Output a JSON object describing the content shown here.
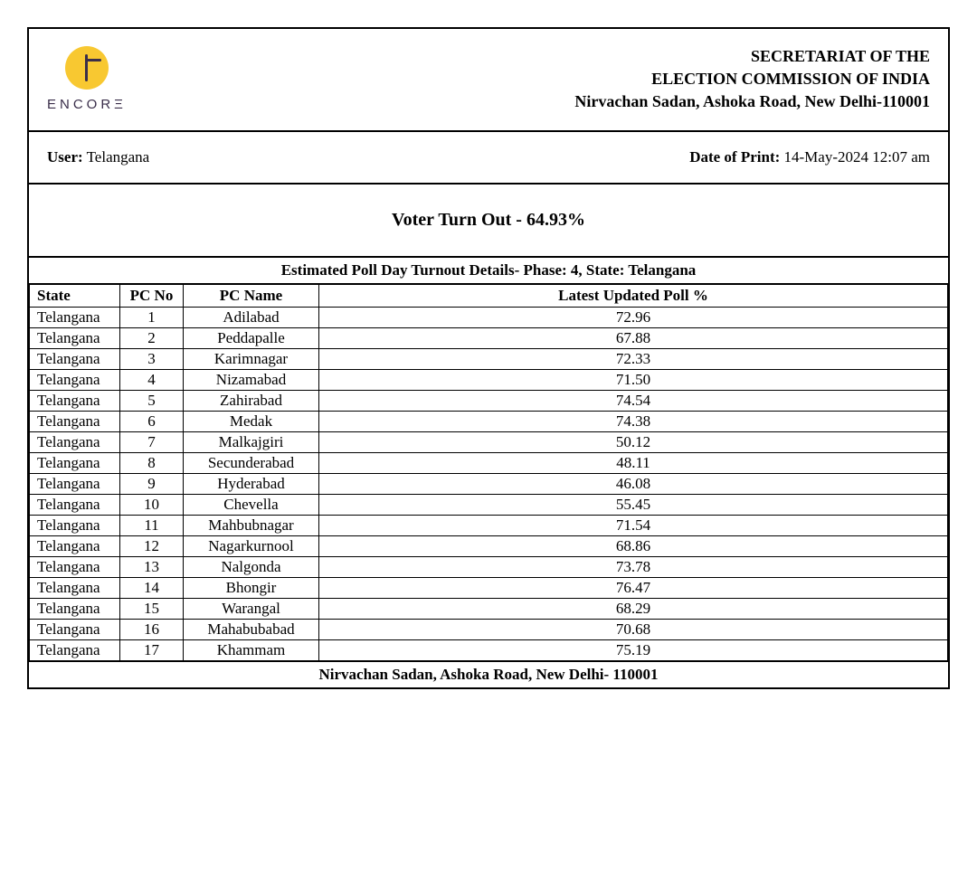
{
  "logo": {
    "text": "ENCORΞ"
  },
  "header": {
    "line1": "SECRETARIAT OF THE",
    "line2": "ELECTION COMMISSION OF INDIA",
    "line3": "Nirvachan Sadan, Ashoka Road, New Delhi-110001"
  },
  "meta": {
    "user_label": "User:",
    "user_value": "Telangana",
    "date_label": "Date of Print:",
    "date_value": "14-May-2024 12:07 am"
  },
  "turnout": {
    "text": "Voter Turn Out - 64.93%"
  },
  "table": {
    "caption": "Estimated Poll Day Turnout Details- Phase: 4, State: Telangana",
    "columns": {
      "state": "State",
      "pcno": "PC No",
      "pcname": "PC Name",
      "poll": "Latest Updated Poll %"
    },
    "rows": [
      {
        "state": "Telangana",
        "pcno": "1",
        "pcname": "Adilabad",
        "poll": "72.96"
      },
      {
        "state": "Telangana",
        "pcno": "2",
        "pcname": "Peddapalle",
        "poll": "67.88"
      },
      {
        "state": "Telangana",
        "pcno": "3",
        "pcname": "Karimnagar",
        "poll": "72.33"
      },
      {
        "state": "Telangana",
        "pcno": "4",
        "pcname": "Nizamabad",
        "poll": "71.50"
      },
      {
        "state": "Telangana",
        "pcno": "5",
        "pcname": "Zahirabad",
        "poll": "74.54"
      },
      {
        "state": "Telangana",
        "pcno": "6",
        "pcname": "Medak",
        "poll": "74.38"
      },
      {
        "state": "Telangana",
        "pcno": "7",
        "pcname": "Malkajgiri",
        "poll": "50.12"
      },
      {
        "state": "Telangana",
        "pcno": "8",
        "pcname": "Secunderabad",
        "poll": "48.11"
      },
      {
        "state": "Telangana",
        "pcno": "9",
        "pcname": "Hyderabad",
        "poll": "46.08"
      },
      {
        "state": "Telangana",
        "pcno": "10",
        "pcname": "Chevella",
        "poll": "55.45"
      },
      {
        "state": "Telangana",
        "pcno": "11",
        "pcname": "Mahbubnagar",
        "poll": "71.54"
      },
      {
        "state": "Telangana",
        "pcno": "12",
        "pcname": "Nagarkurnool",
        "poll": "68.86"
      },
      {
        "state": "Telangana",
        "pcno": "13",
        "pcname": "Nalgonda",
        "poll": "73.78"
      },
      {
        "state": "Telangana",
        "pcno": "14",
        "pcname": "Bhongir",
        "poll": "76.47"
      },
      {
        "state": "Telangana",
        "pcno": "15",
        "pcname": "Warangal",
        "poll": "68.29"
      },
      {
        "state": "Telangana",
        "pcno": "16",
        "pcname": "Mahabubabad",
        "poll": "70.68"
      },
      {
        "state": "Telangana",
        "pcno": "17",
        "pcname": "Khammam",
        "poll": "75.19"
      }
    ],
    "footer": "Nirvachan Sadan, Ashoka Road, New Delhi- 110001"
  }
}
